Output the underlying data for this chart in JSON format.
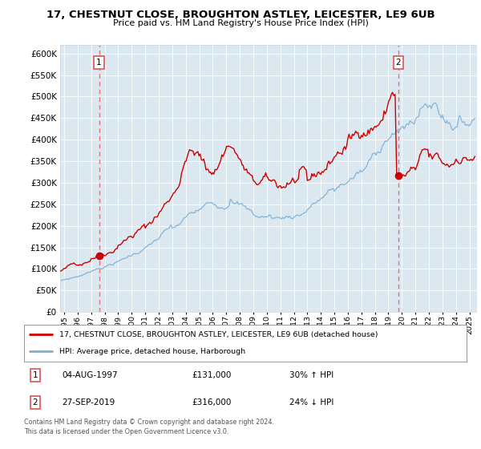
{
  "title": "17, CHESTNUT CLOSE, BROUGHTON ASTLEY, LEICESTER, LE9 6UB",
  "subtitle": "Price paid vs. HM Land Registry's House Price Index (HPI)",
  "legend_line1": "17, CHESTNUT CLOSE, BROUGHTON ASTLEY, LEICESTER, LE9 6UB (detached house)",
  "legend_line2": "HPI: Average price, detached house, Harborough",
  "annotation1_label": "1",
  "annotation1_date": "04-AUG-1997",
  "annotation1_price": "£131,000",
  "annotation1_hpi": "30% ↑ HPI",
  "annotation2_label": "2",
  "annotation2_date": "27-SEP-2019",
  "annotation2_price": "£316,000",
  "annotation2_hpi": "24% ↓ HPI",
  "footer": "Contains HM Land Registry data © Crown copyright and database right 2024.\nThis data is licensed under the Open Government Licence v3.0.",
  "red_line_color": "#cc0000",
  "blue_line_color": "#7ab0d4",
  "marker_color": "#cc0000",
  "dashed_line_color": "#e06060",
  "grid_color": "#c8d8e8",
  "background_color": "#ffffff",
  "plot_bg_color": "#dce8f0",
  "ylim": [
    0,
    620000
  ],
  "yticks": [
    0,
    50000,
    100000,
    150000,
    200000,
    250000,
    300000,
    350000,
    400000,
    450000,
    500000,
    550000,
    600000
  ],
  "xlim_start": 1994.7,
  "xlim_end": 2025.5,
  "sale1_x": 1997.58,
  "sale1_y": 131000,
  "sale2_x": 2019.73,
  "sale2_y": 316000,
  "red_seed": 42,
  "blue_seed": 7
}
